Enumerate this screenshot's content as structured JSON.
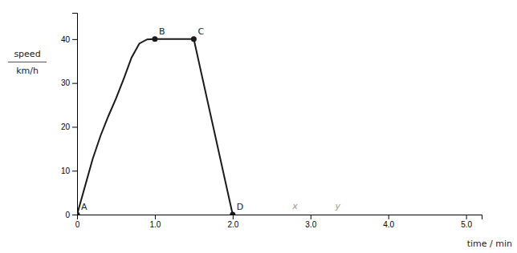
{
  "chart_data": {
    "type": "line",
    "xlabel": "time / min",
    "ylabel": [
      "speed",
      "km/h"
    ],
    "series": [
      {
        "color": "#1a1a1a",
        "x": [
          0.0,
          0.1,
          0.2,
          0.3,
          0.4,
          0.5,
          0.6,
          0.7,
          0.8,
          0.9,
          1.0
        ],
        "values": [
          0.0,
          6.32,
          12.65,
          17.89,
          22.36,
          26.46,
          30.98,
          35.78,
          38.99,
          39.95,
          40.0
        ]
      },
      {
        "color": "#1a1a1a",
        "x": [
          1.0,
          1.5,
          2.0
        ],
        "values": [
          40.0,
          40.0,
          0.0
        ]
      },
      {
        "type": "scatter",
        "marker": "circle",
        "color": "#1a1a1a",
        "x": [
          0,
          1.0,
          1.5,
          2.0
        ],
        "values": [
          0,
          40,
          40,
          0
        ],
        "labels": [
          "A",
          "B",
          "C",
          "D"
        ]
      }
    ],
    "annotations": [
      {
        "text": "x",
        "x": 2.8,
        "y": 1.2
      },
      {
        "text": "y",
        "x": 3.35,
        "y": 1.2
      }
    ],
    "xlim": [
      0,
      5.2
    ],
    "ylim": [
      0,
      46
    ],
    "xticks": [
      0,
      {
        "value": 1.0,
        "label": "1.0"
      },
      {
        "value": 2.0,
        "label": "2.0"
      },
      {
        "value": 3.0,
        "label": "3.0"
      },
      {
        "value": 4.0,
        "label": "4.0"
      },
      {
        "value": 5.0,
        "label": "5.0"
      }
    ],
    "yticks": [
      0,
      10,
      20,
      30,
      40
    ]
  }
}
